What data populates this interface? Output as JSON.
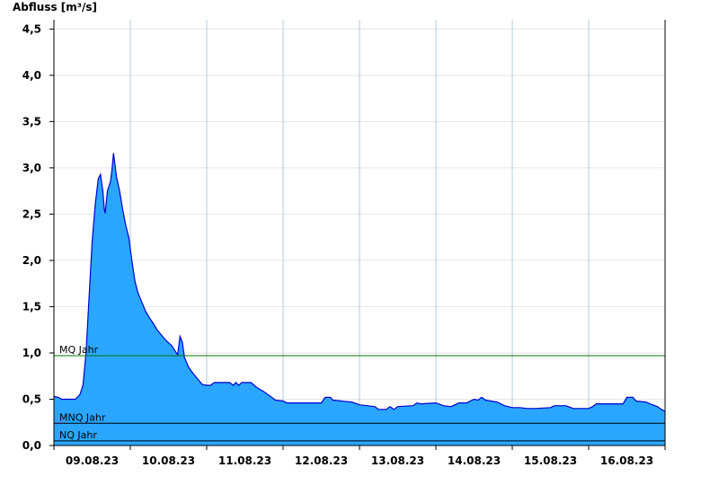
{
  "chart_data": {
    "type": "area",
    "ylabel": "Abfluss [m³/s]",
    "ylim": [
      0,
      4.6
    ],
    "yticks": [
      0.0,
      0.5,
      1.0,
      1.5,
      2.0,
      2.5,
      3.0,
      3.5,
      4.0,
      4.5
    ],
    "ytick_labels": [
      "0,0",
      "0,5",
      "1,0",
      "1,5",
      "2,0",
      "2,5",
      "3,0",
      "3,5",
      "4,0",
      "4,5"
    ],
    "xlim": [
      0,
      8
    ],
    "xtick_labels": [
      "09.08.23",
      "10.08.23",
      "11.08.23",
      "12.08.23",
      "13.08.23",
      "14.08.23",
      "15.08.23",
      "16.08.23"
    ],
    "grid": true,
    "colors": {
      "fill": "#2aa6ff",
      "line": "#0000cc",
      "mq": "#007700",
      "ref": "#000000",
      "grid": "#e6e6e6"
    },
    "reference_lines": [
      {
        "label": "MQ Jahr",
        "value": 0.97
      },
      {
        "label": "MNQ Jahr",
        "value": 0.24
      },
      {
        "label": "NQ Jahr",
        "value": 0.05
      }
    ],
    "series": [
      {
        "points": [
          [
            0.0,
            0.53
          ],
          [
            0.06,
            0.52
          ],
          [
            0.1,
            0.5
          ],
          [
            0.2,
            0.5
          ],
          [
            0.28,
            0.5
          ],
          [
            0.34,
            0.55
          ],
          [
            0.38,
            0.65
          ],
          [
            0.42,
            1.0
          ],
          [
            0.46,
            1.6
          ],
          [
            0.5,
            2.2
          ],
          [
            0.54,
            2.6
          ],
          [
            0.58,
            2.88
          ],
          [
            0.61,
            2.93
          ],
          [
            0.64,
            2.75
          ],
          [
            0.66,
            2.55
          ],
          [
            0.67,
            2.51
          ],
          [
            0.7,
            2.75
          ],
          [
            0.74,
            2.85
          ],
          [
            0.76,
            2.98
          ],
          [
            0.78,
            3.16
          ],
          [
            0.82,
            2.9
          ],
          [
            0.86,
            2.75
          ],
          [
            0.9,
            2.55
          ],
          [
            0.94,
            2.38
          ],
          [
            0.98,
            2.25
          ],
          [
            1.02,
            2.0
          ],
          [
            1.06,
            1.78
          ],
          [
            1.1,
            1.65
          ],
          [
            1.15,
            1.55
          ],
          [
            1.2,
            1.45
          ],
          [
            1.25,
            1.38
          ],
          [
            1.3,
            1.32
          ],
          [
            1.35,
            1.25
          ],
          [
            1.4,
            1.2
          ],
          [
            1.45,
            1.15
          ],
          [
            1.5,
            1.11
          ],
          [
            1.54,
            1.08
          ],
          [
            1.58,
            1.03
          ],
          [
            1.62,
            0.98
          ],
          [
            1.65,
            1.18
          ],
          [
            1.68,
            1.12
          ],
          [
            1.71,
            0.95
          ],
          [
            1.76,
            0.85
          ],
          [
            1.82,
            0.78
          ],
          [
            1.88,
            0.72
          ],
          [
            1.94,
            0.66
          ],
          [
            2.0,
            0.65
          ],
          [
            2.05,
            0.65
          ],
          [
            2.1,
            0.68
          ],
          [
            2.3,
            0.68
          ],
          [
            2.35,
            0.65
          ],
          [
            2.38,
            0.68
          ],
          [
            2.42,
            0.65
          ],
          [
            2.46,
            0.68
          ],
          [
            2.58,
            0.68
          ],
          [
            2.65,
            0.63
          ],
          [
            2.75,
            0.58
          ],
          [
            2.85,
            0.52
          ],
          [
            2.9,
            0.49
          ],
          [
            3.0,
            0.48
          ],
          [
            3.05,
            0.46
          ],
          [
            3.5,
            0.46
          ],
          [
            3.55,
            0.52
          ],
          [
            3.62,
            0.52
          ],
          [
            3.65,
            0.49
          ],
          [
            3.9,
            0.47
          ],
          [
            4.0,
            0.44
          ],
          [
            4.2,
            0.42
          ],
          [
            4.25,
            0.39
          ],
          [
            4.35,
            0.39
          ],
          [
            4.4,
            0.42
          ],
          [
            4.45,
            0.39
          ],
          [
            4.5,
            0.42
          ],
          [
            4.7,
            0.43
          ],
          [
            4.75,
            0.46
          ],
          [
            4.8,
            0.45
          ],
          [
            5.0,
            0.46
          ],
          [
            5.1,
            0.43
          ],
          [
            5.2,
            0.42
          ],
          [
            5.3,
            0.46
          ],
          [
            5.4,
            0.46
          ],
          [
            5.5,
            0.5
          ],
          [
            5.55,
            0.49
          ],
          [
            5.6,
            0.52
          ],
          [
            5.65,
            0.49
          ],
          [
            5.8,
            0.47
          ],
          [
            5.9,
            0.43
          ],
          [
            6.0,
            0.41
          ],
          [
            6.1,
            0.41
          ],
          [
            6.2,
            0.4
          ],
          [
            6.3,
            0.4
          ],
          [
            6.5,
            0.41
          ],
          [
            6.55,
            0.43
          ],
          [
            6.7,
            0.43
          ],
          [
            6.8,
            0.4
          ],
          [
            7.0,
            0.4
          ],
          [
            7.05,
            0.42
          ],
          [
            7.1,
            0.45
          ],
          [
            7.2,
            0.45
          ],
          [
            7.3,
            0.45
          ],
          [
            7.45,
            0.45
          ],
          [
            7.5,
            0.52
          ],
          [
            7.58,
            0.52
          ],
          [
            7.62,
            0.48
          ],
          [
            7.75,
            0.47
          ],
          [
            7.8,
            0.45
          ],
          [
            7.9,
            0.42
          ],
          [
            7.95,
            0.39
          ],
          [
            8.0,
            0.37
          ]
        ]
      }
    ]
  }
}
